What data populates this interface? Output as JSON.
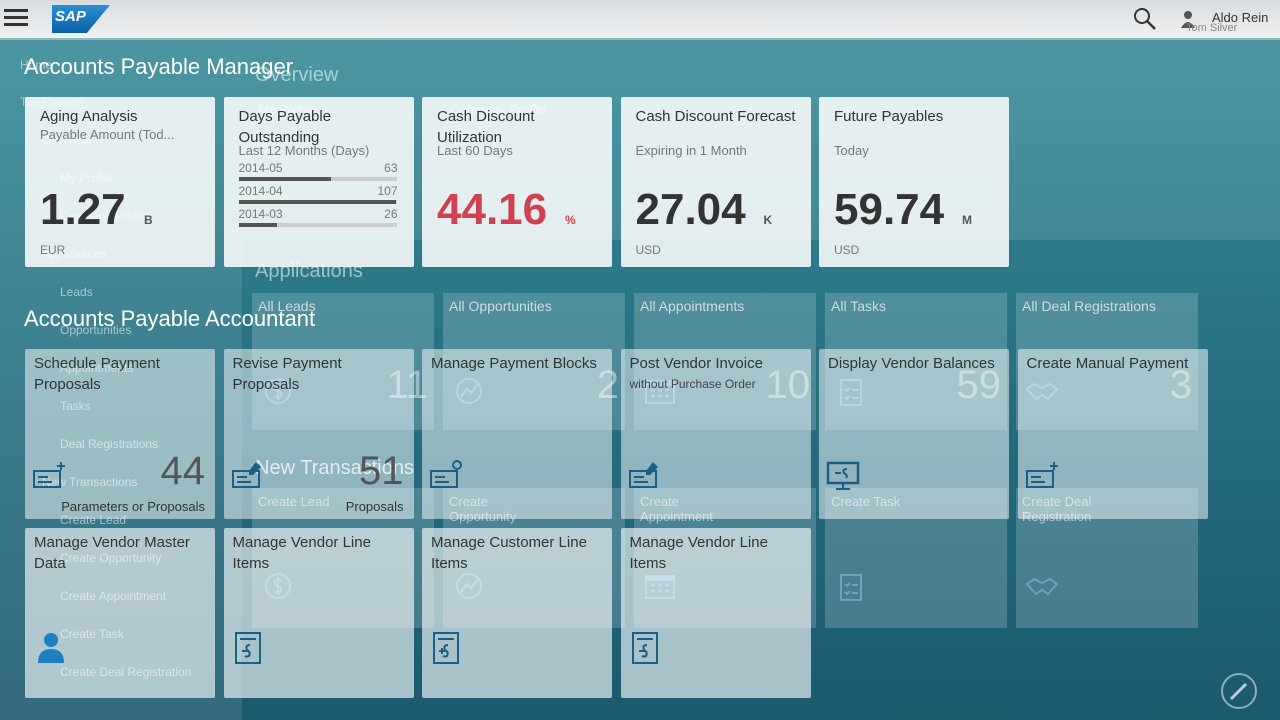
{
  "header": {
    "logo": "SAP",
    "user_name": "Aldo Rein",
    "user_subtitle": "Tom Silver"
  },
  "groups": [
    {
      "title": "Accounts Payable Manager",
      "tiles": [
        {
          "title": "Aging Analysis",
          "subtitle": "Payable Amount (Tod...",
          "value": "1.27",
          "unit": "B",
          "footer": "EUR"
        },
        {
          "title": "Days Payable Outstanding",
          "subtitle": "Last 12 Months (Days)",
          "bars": [
            {
              "label": "2014-05",
              "value": 63
            },
            {
              "label": "2014-04",
              "value": 107
            },
            {
              "label": "2014-03",
              "value": 26
            }
          ]
        },
        {
          "title": "Cash Discount Utilization",
          "subtitle": "Last 60 Days",
          "value": "44.16",
          "unit": "%",
          "value_color": "#d0414f"
        },
        {
          "title": "Cash Discount Forecast",
          "subtitle": "Expiring in 1 Month",
          "value": "27.04",
          "unit": "K",
          "footer": "USD"
        },
        {
          "title": "Future Payables",
          "subtitle": "Today",
          "value": "59.74",
          "unit": "M",
          "footer": "USD"
        }
      ]
    },
    {
      "title": "Accounts Payable Accountant",
      "tiles": [
        {
          "title": "Schedule Payment Proposals",
          "count": "44",
          "info": "Parameters or Proposals"
        },
        {
          "title": "Revise Payment Proposals",
          "count": "51",
          "info": "Proposals"
        },
        {
          "title": "Manage Payment Blocks"
        },
        {
          "title": "Post Vendor Invoice",
          "subtitle": "without Purchase Order"
        },
        {
          "title": "Display Vendor Balances"
        },
        {
          "title": "Create Manual Payment"
        },
        {
          "title": "Manage Vendor Master Data"
        },
        {
          "title": "Manage Vendor Line Items"
        },
        {
          "title": "Manage Customer Line Items"
        },
        {
          "title": "Manage Vendor Line Items"
        }
      ]
    }
  ],
  "background": {
    "menu": [
      "Home",
      "Tile Catalog",
      "Overview",
      "My Profile",
      "Company Profile",
      "Applications",
      "Leads",
      "Opportunities",
      "Appointments",
      "Tasks",
      "Deal Registrations",
      "New Transactions",
      "Create Lead",
      "Create Opportunity",
      "Create Appointment",
      "Create Task",
      "Create Deal Registration"
    ],
    "overview": "Overview",
    "profile_links": [
      "My Profile",
      "Company Profile"
    ],
    "applications": "Applications",
    "app_tiles": [
      {
        "title": "All Leads",
        "count": "11"
      },
      {
        "title": "All Opportunities",
        "count": "2"
      },
      {
        "title": "All Appointments",
        "count": "10"
      },
      {
        "title": "All Tasks",
        "count": "59"
      },
      {
        "title": "All Deal Registrations",
        "count": "3"
      }
    ],
    "new_transactions": "New Transactions",
    "transaction_tiles": [
      "Create Lead",
      "Create Opportunity",
      "Create Appointment",
      "Create Task",
      "Create Deal Registration"
    ]
  }
}
